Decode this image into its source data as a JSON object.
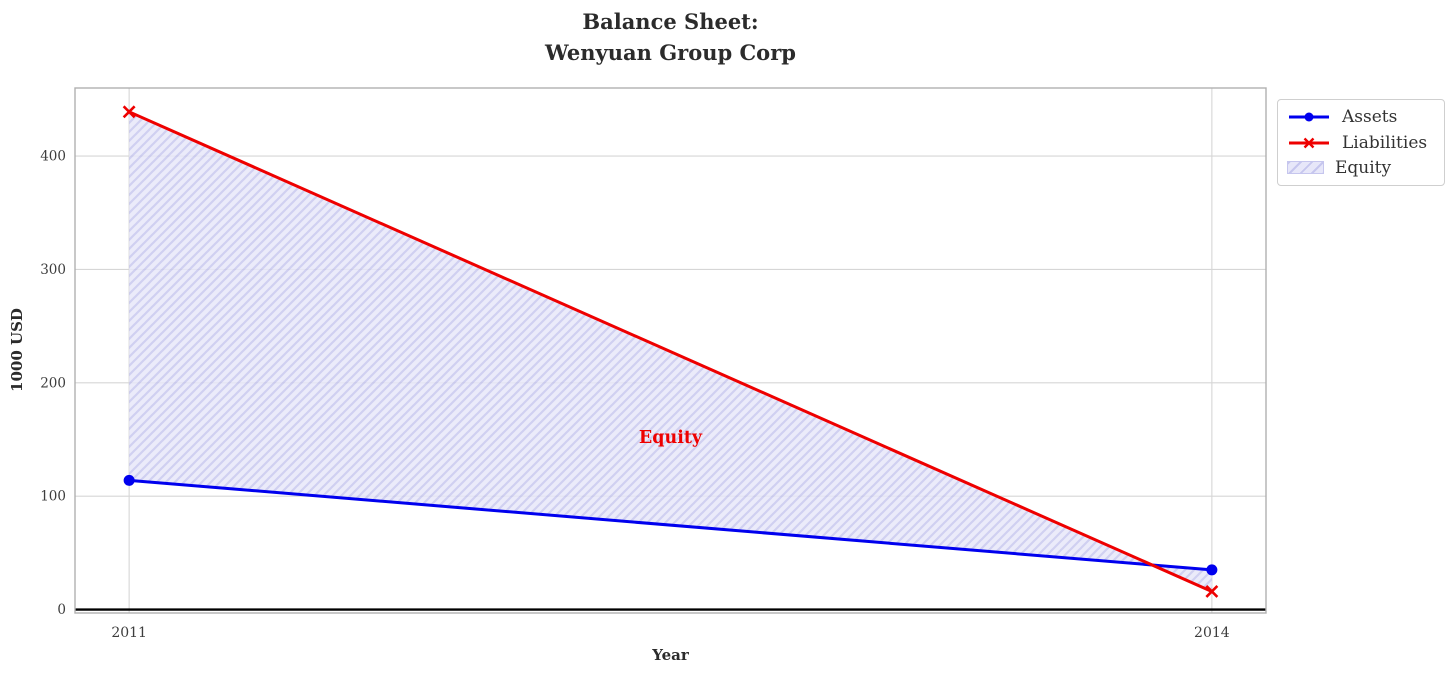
{
  "chart_data": {
    "type": "line",
    "title": "Balance Sheet:\nWenyuan Group Corp",
    "xlabel": "Year",
    "ylabel": "1000 USD",
    "x": [
      2011,
      2014
    ],
    "xticks": [
      2011,
      2014
    ],
    "yticks": [
      0,
      100,
      200,
      300,
      400
    ],
    "xlim": [
      2010.85,
      2014.15
    ],
    "ylim": [
      -3,
      460
    ],
    "grid": true,
    "zero_line": true,
    "series": [
      {
        "name": "Assets",
        "values": [
          114,
          35
        ],
        "color": "#0000ee",
        "marker": "circle"
      },
      {
        "name": "Liabilities",
        "values": [
          439,
          16
        ],
        "color": "#ee0000",
        "marker": "x"
      }
    ],
    "fill": {
      "name": "Equity",
      "between": [
        "Assets",
        "Liabilities"
      ],
      "facecolor": "#e7e7f9",
      "hatch_color": "#c6c6ee",
      "hatch": "/"
    },
    "annotation": {
      "text": "Equity",
      "x": 2012.5,
      "y": 151,
      "color": "#ee0000"
    },
    "legend": {
      "items": [
        "Assets",
        "Liabilities",
        "Equity"
      ],
      "position": "upper-right-outside"
    },
    "colors": {
      "grid": "#d6d6d6",
      "spine": "#b0b0b0",
      "tick_text": "#3d3d3d",
      "title_text": "#2b2b2b",
      "zero_line": "#000000"
    }
  }
}
